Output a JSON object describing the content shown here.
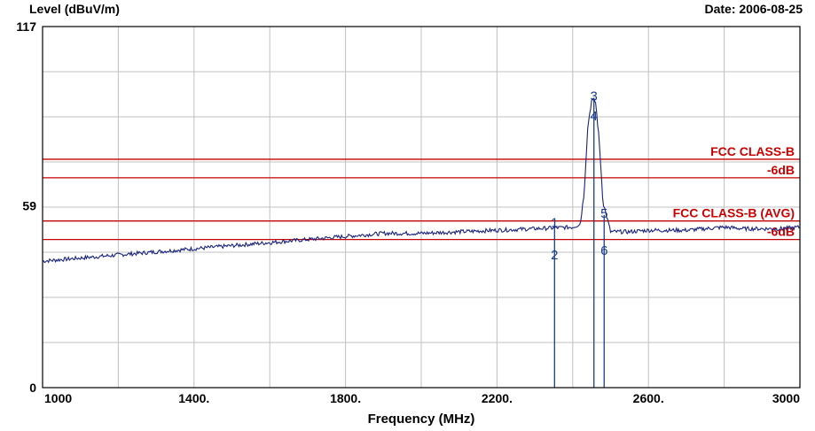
{
  "header": {
    "ylabel": "Level (dBuV/m)",
    "date": "Date: 2006-08-25"
  },
  "chart_data": {
    "type": "line",
    "xlabel": "Frequency (MHz)",
    "ylabel": "Level (dBuV/m)",
    "xlim": [
      1000,
      3000
    ],
    "ylim": [
      0,
      117
    ],
    "x_ticks": [
      "1000",
      "1400.",
      "1800.",
      "2200.",
      "2600.",
      "3000"
    ],
    "x_tick_values": [
      1000,
      1400,
      1800,
      2200,
      2600,
      3000
    ],
    "y_ticks": [
      "117",
      "59",
      "0"
    ],
    "y_tick_values": [
      117,
      59,
      0
    ],
    "grid": true,
    "limit_lines": [
      {
        "name": "FCC CLASS-B",
        "value": 74,
        "label": "FCC CLASS-B"
      },
      {
        "name": "FCC CLASS-B -6dB",
        "value": 68,
        "label": "-6dB"
      },
      {
        "name": "FCC CLASS-B (AVG)",
        "value": 54,
        "label": "FCC CLASS-B (AVG)"
      },
      {
        "name": "FCC CLASS-B (AVG) -6dB",
        "value": 48,
        "label": "-6dB"
      }
    ],
    "series": [
      {
        "values_x": [
          1000,
          1200,
          1400,
          1600,
          1800,
          1900,
          2000,
          2100,
          2200,
          2300,
          2400,
          2420,
          2430,
          2440,
          2450,
          2460,
          2470,
          2480,
          2500,
          2550,
          2600,
          2700,
          2800,
          2850,
          2900,
          2950,
          3000
        ],
        "values_y": [
          41,
          43,
          45,
          47,
          49,
          50,
          50,
          50.5,
          51,
          51.5,
          52,
          53,
          63,
          85,
          93,
          93,
          80,
          60,
          50.5,
          50.5,
          51,
          51,
          52,
          51.5,
          51.5,
          51.5,
          52
        ]
      }
    ],
    "markers": [
      {
        "label": "1",
        "x": 2352,
        "y": 53.5
      },
      {
        "label": "2",
        "x": 2352,
        "y": 43
      },
      {
        "label": "3",
        "x": 2456,
        "y": 94.5
      },
      {
        "label": "4",
        "x": 2456,
        "y": 88
      },
      {
        "label": "5",
        "x": 2483,
        "y": 56.5
      },
      {
        "label": "6",
        "x": 2483,
        "y": 44.5
      }
    ],
    "colors": {
      "trace": "#1a237e",
      "limit": "#c40000",
      "grid": "#c0c0c0",
      "marker": "#1a3f8a"
    }
  }
}
